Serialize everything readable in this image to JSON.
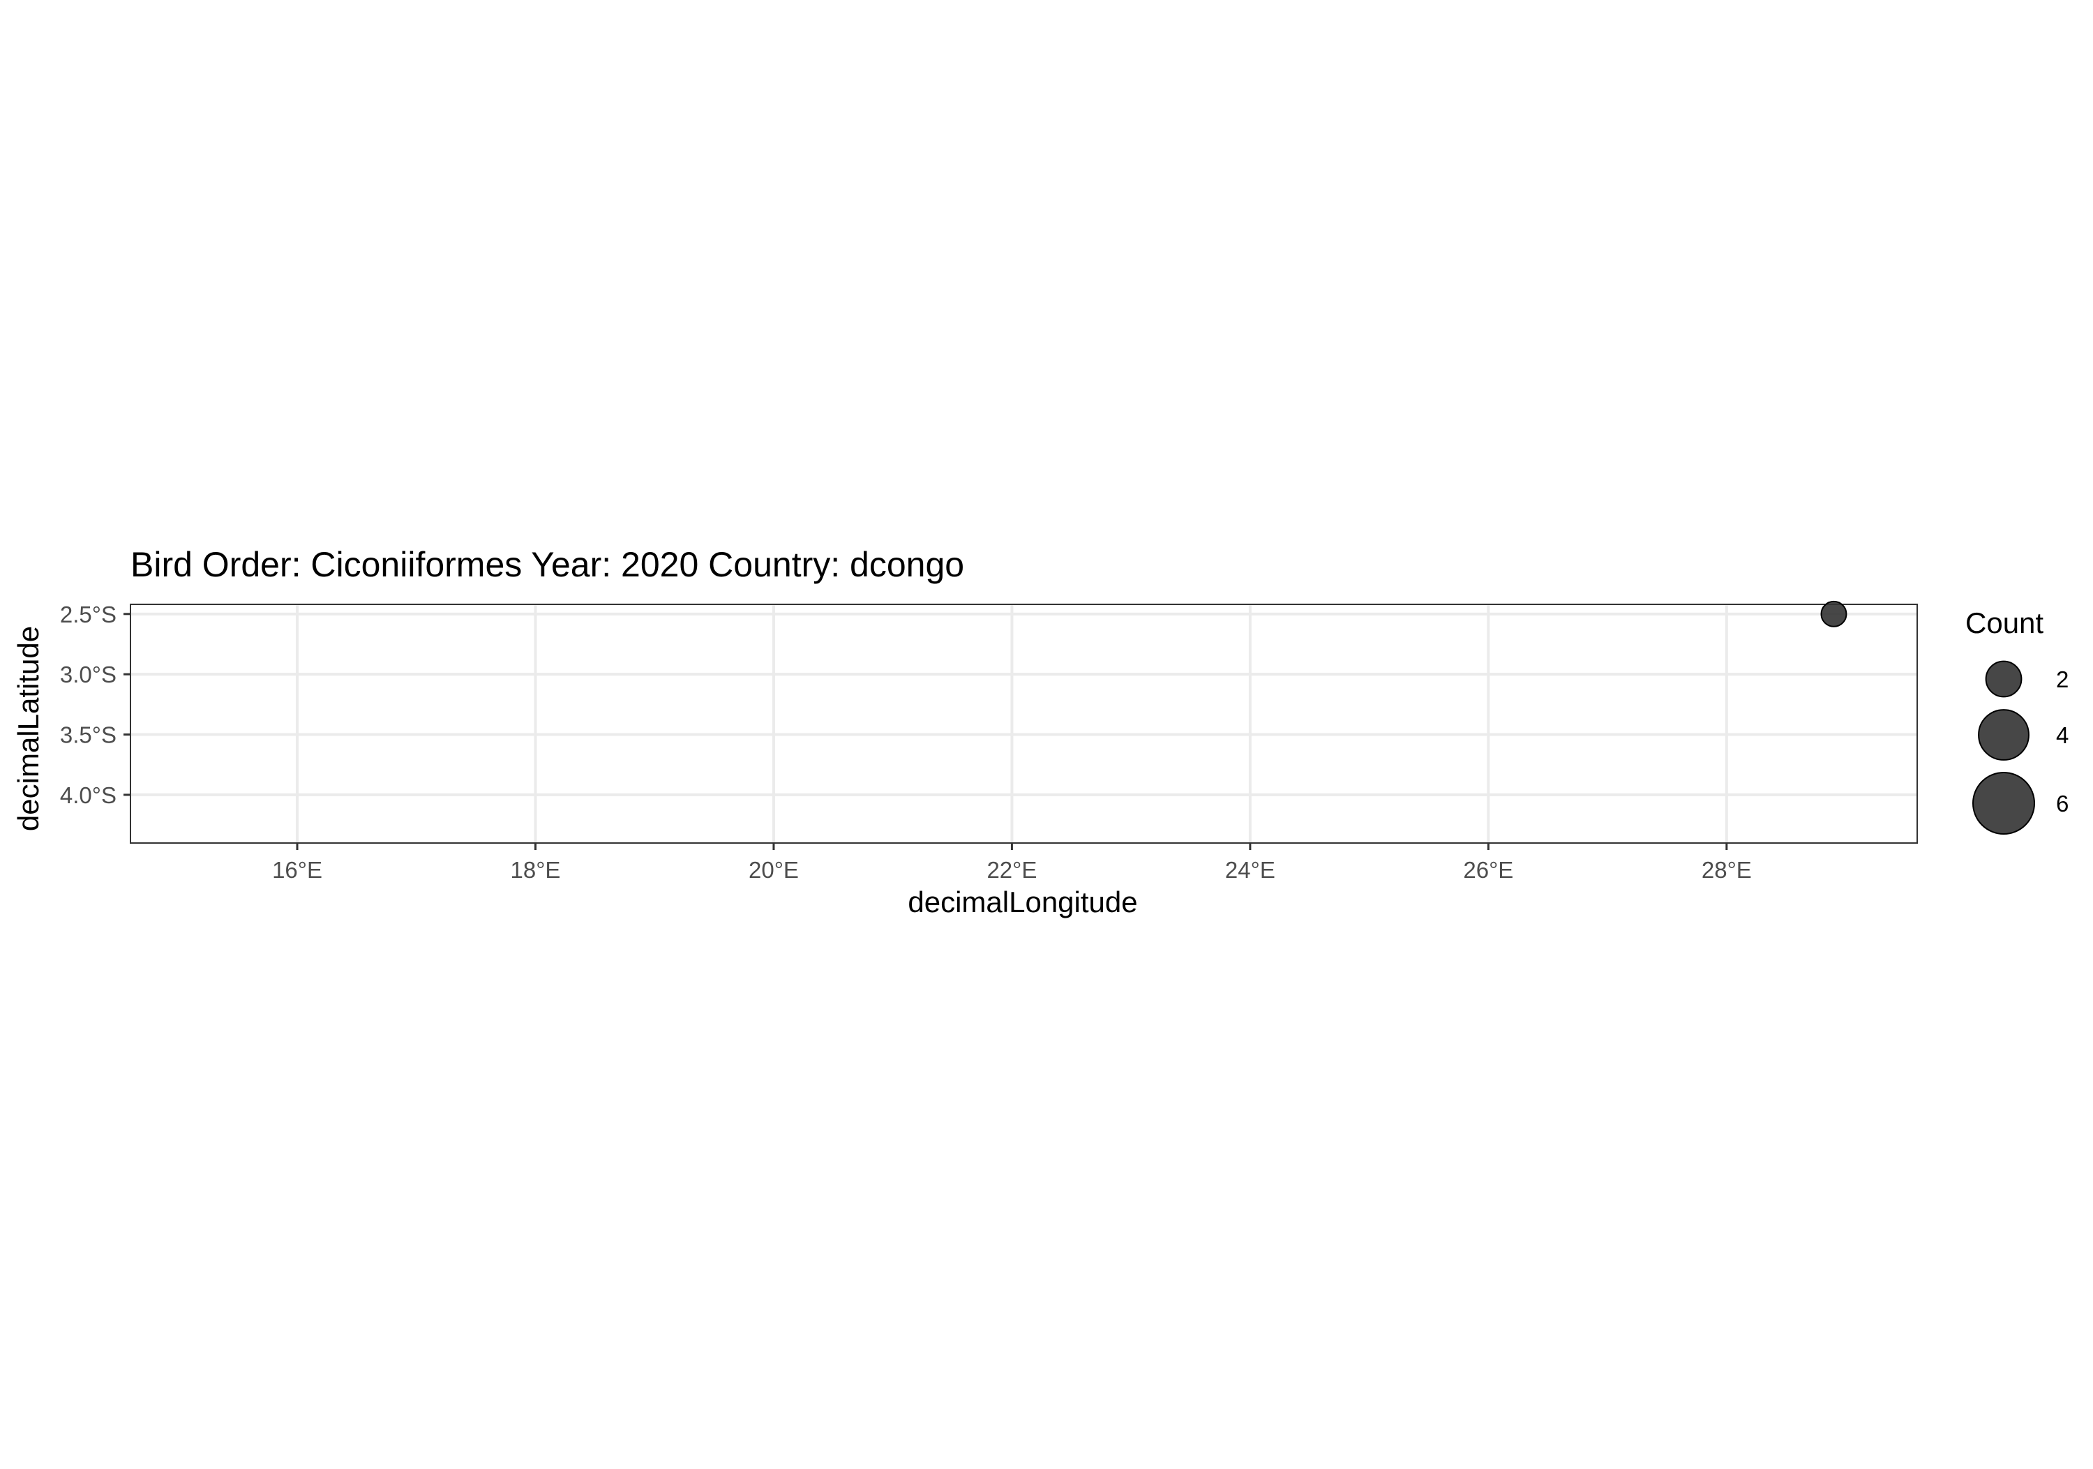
{
  "chart_data": {
    "type": "scatter",
    "title": "Bird Order: Ciconiiformes Year: 2020 Country: dcongo",
    "xlabel": "decimalLongitude",
    "ylabel": "decimalLatitude",
    "xlim": [
      14.6,
      29.6
    ],
    "ylim": [
      -4.4,
      -2.42
    ],
    "x_ticks": [
      {
        "value": 16,
        "label": "16°E"
      },
      {
        "value": 18,
        "label": "18°E"
      },
      {
        "value": 20,
        "label": "20°E"
      },
      {
        "value": 22,
        "label": "22°E"
      },
      {
        "value": 24,
        "label": "24°E"
      },
      {
        "value": 26,
        "label": "26°E"
      },
      {
        "value": 28,
        "label": "28°E"
      }
    ],
    "y_ticks": [
      {
        "value": -2.5,
        "label": "2.5°S"
      },
      {
        "value": -3.0,
        "label": "3.0°S"
      },
      {
        "value": -3.5,
        "label": "3.5°S"
      },
      {
        "value": -4.0,
        "label": "4.0°S"
      }
    ],
    "grid": true,
    "points": [
      {
        "x": 28.9,
        "y": -2.5,
        "count": 1
      }
    ],
    "legend": {
      "title": "Count",
      "position": "right",
      "entries": [
        {
          "value": 2,
          "label": "2"
        },
        {
          "value": 4,
          "label": "4"
        },
        {
          "value": 6,
          "label": "6"
        }
      ]
    },
    "colors": {
      "point_fill": "#333333",
      "point_stroke": "#000000",
      "grid": "#ebebeb",
      "panel_border": "#333333"
    }
  }
}
